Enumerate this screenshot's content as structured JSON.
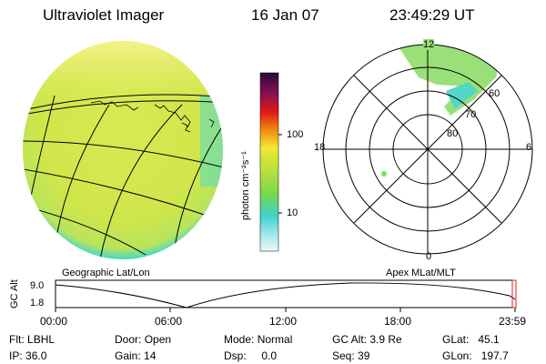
{
  "header": {
    "instrument": "Ultraviolet Imager",
    "date": "16 Jan 07",
    "time": "23:49:29 UT"
  },
  "colorbar": {
    "unit_label": "photon cm⁻²s⁻¹",
    "ticks": [
      "100",
      "10"
    ]
  },
  "polar_plot": {
    "mlt_labels": {
      "top": "12",
      "left": "18",
      "right": "6",
      "bottom": "0"
    },
    "lat_labels": [
      "60",
      "70",
      "80"
    ]
  },
  "panels": {
    "left_label": "Geographic Lat/Lon",
    "right_label": "Apex MLat/MLT"
  },
  "altitude_plot": {
    "ylabel": "GC Alt",
    "yticks": [
      "9.0",
      "1.8"
    ],
    "xticks": [
      "00:00",
      "06:00",
      "12:00",
      "18:00",
      "23:59"
    ]
  },
  "status": [
    {
      "label": "Flt:",
      "value": "LBHL"
    },
    {
      "label": "Door:",
      "value": "Open"
    },
    {
      "label": "Mode:",
      "value": "Normal"
    },
    {
      "label": "GC Alt:",
      "value": "3.9 Re"
    },
    {
      "label": "GLat:",
      "value": "45.1"
    },
    {
      "label": "IP:",
      "value": "36.0"
    },
    {
      "label": "Gain:",
      "value": "14"
    },
    {
      "label": "Dsp:",
      "value": "0.0"
    },
    {
      "label": "Seq:",
      "value": "39"
    },
    {
      "label": "GLon:",
      "value": "197.7"
    }
  ],
  "colors": {
    "earth_main": "#d6ea4a",
    "earth_bright": "#f4f07a",
    "earth_rim": "#3fd6c4",
    "auroral": "#88e07a"
  }
}
